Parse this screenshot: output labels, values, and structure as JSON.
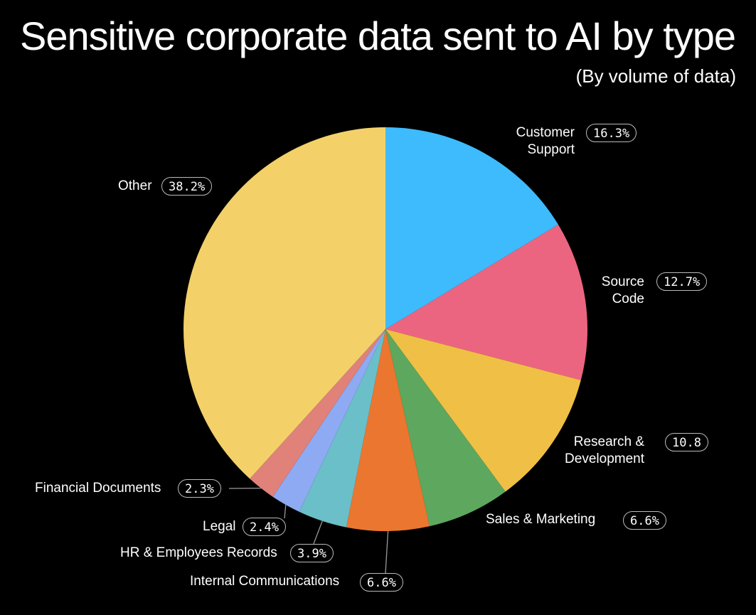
{
  "title": "Sensitive corporate data sent to AI by type",
  "subtitle": "(By volume of data)",
  "colors": {
    "background": "#000000",
    "customer_support": "#3DBBFC",
    "source_code": "#EC6580",
    "research_development": "#F0BF45",
    "sales_marketing": "#5DA85E",
    "internal_communications": "#EB7630",
    "hr_employees_records": "#6BBFC8",
    "legal": "#8DAAF2",
    "financial_documents": "#E0817A",
    "other": "#F3D168"
  },
  "chart_data": {
    "type": "pie",
    "title": "Sensitive corporate data sent to AI by type",
    "subtitle": "(By volume of data)",
    "slices": [
      {
        "label": "Customer Support",
        "value": 16.3,
        "display": "16.3%",
        "color": "#3DBBFC"
      },
      {
        "label": "Source Code",
        "value": 12.7,
        "display": "12.7%",
        "color": "#EC6580"
      },
      {
        "label": "Research & Development",
        "value": 10.8,
        "display": "10.8",
        "color": "#F0BF45"
      },
      {
        "label": "Sales & Marketing",
        "value": 6.6,
        "display": "6.6%",
        "color": "#5DA85E"
      },
      {
        "label": "Internal Communications",
        "value": 6.6,
        "display": "6.6%",
        "color": "#EB7630"
      },
      {
        "label": "HR & Employees Records",
        "value": 3.9,
        "display": "3.9%",
        "color": "#6BBFC8"
      },
      {
        "label": "Legal",
        "value": 2.4,
        "display": "2.4%",
        "color": "#8DAAF2"
      },
      {
        "label": "Financial Documents",
        "value": 2.3,
        "display": "2.3%",
        "color": "#E0817A"
      },
      {
        "label": "Other",
        "value": 38.2,
        "display": "38.2%",
        "color": "#F3D168"
      }
    ],
    "labels": {
      "customer_support_1": "Customer",
      "customer_support_2": "Support",
      "source_code_1": "Source",
      "source_code_2": "Code",
      "research_1": "Research &",
      "research_2": "Development",
      "sales_marketing": "Sales & Marketing",
      "internal_communications": "Internal Communications",
      "hr_employees_records": "HR & Employees Records",
      "legal": "Legal",
      "financial_documents": "Financial Documents",
      "other": "Other"
    }
  }
}
